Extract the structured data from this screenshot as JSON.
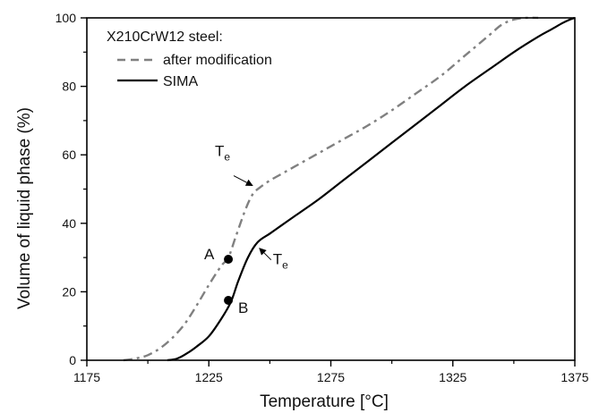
{
  "chart_data": {
    "type": "line",
    "title": "",
    "xlabel": "Temperature [°C]",
    "ylabel": "Volume of  liquid phase  (%)",
    "xlim": [
      1175,
      1375
    ],
    "ylim": [
      0,
      100
    ],
    "xticks": [
      1175,
      1225,
      1275,
      1325,
      1375
    ],
    "yticks": [
      0,
      20,
      40,
      60,
      80,
      100
    ],
    "grid": false,
    "legend": {
      "title": "X210CrW12 steel:",
      "placement": "top-left"
    },
    "series": [
      {
        "name": "after modification",
        "style": "dashed",
        "color": "#808080",
        "x": [
          1190,
          1195,
          1200,
          1205,
          1210,
          1215,
          1220,
          1225,
          1230,
          1233,
          1236,
          1240,
          1243,
          1246,
          1250,
          1255,
          1260,
          1270,
          1280,
          1290,
          1300,
          1310,
          1320,
          1330,
          1340,
          1345,
          1350,
          1355,
          1360
        ],
        "y": [
          0,
          0.5,
          1.5,
          3.5,
          6.5,
          10.5,
          16,
          22,
          27.5,
          30,
          36,
          44,
          48.5,
          50.5,
          52.5,
          54.5,
          56.5,
          60.5,
          64.5,
          68.5,
          73,
          78,
          83,
          89,
          95,
          98,
          99.5,
          100,
          100
        ]
      },
      {
        "name": "SIMA",
        "style": "solid",
        "color": "#000000",
        "x": [
          1208,
          1212,
          1216,
          1220,
          1225,
          1230,
          1234,
          1237,
          1241,
          1245,
          1250,
          1255,
          1260,
          1270,
          1280,
          1290,
          1300,
          1310,
          1320,
          1330,
          1340,
          1350,
          1360,
          1365,
          1370,
          1373,
          1375
        ],
        "y": [
          0,
          0.5,
          2,
          4,
          7,
          12,
          17,
          23,
          30,
          34.5,
          37,
          39.5,
          42,
          47,
          52.5,
          58,
          63.5,
          69,
          74.5,
          80,
          85,
          90,
          94.5,
          96.5,
          98.5,
          99.5,
          100
        ]
      }
    ],
    "points": [
      {
        "label": "A",
        "x": 1233,
        "y": 29.5
      },
      {
        "label": "B",
        "x": 1233,
        "y": 17.5
      }
    ],
    "annotations": [
      {
        "label": "T",
        "sub": "e",
        "target_x": 1244,
        "target_y": 50.5
      },
      {
        "label": "T",
        "sub": "e",
        "target_x": 1245,
        "target_y": 33.5
      }
    ]
  }
}
